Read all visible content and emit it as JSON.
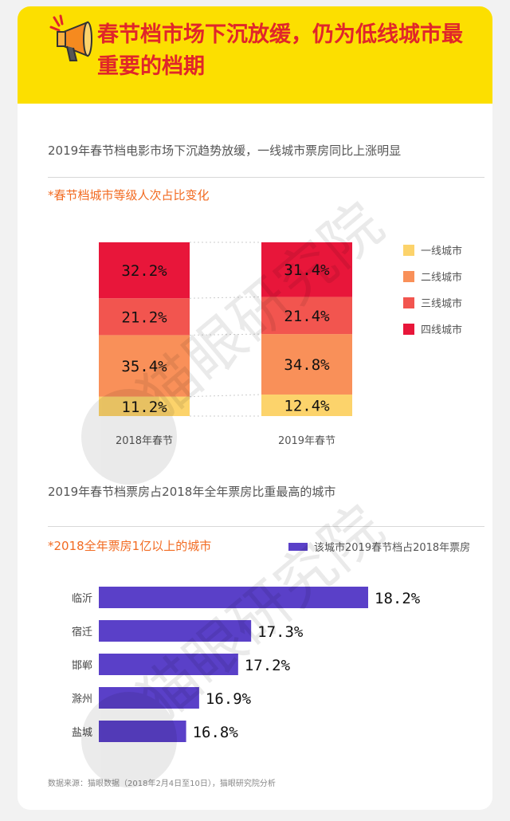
{
  "header": {
    "title": "春节档市场下沉放缓，仍为低线城市最重要的档期"
  },
  "section1": {
    "subtitle": "2019年春节档电影市场下沉趋势放缓，一线城市票房同比上涨明显",
    "label": "*春节档城市等级人次占比变化"
  },
  "section2": {
    "subtitle": "2019年春节档票房占2018年全年票房比重最高的城市",
    "label": "*2018全年票房1亿以上的城市"
  },
  "source": "数据来源：猫眼数据（2018年2月4日至10日），猫眼研究院分析",
  "watermark": {
    "text": "猫眼研究院"
  },
  "colors": {
    "tier1": "#fcd36b",
    "tier2": "#f99059",
    "tier3": "#f2554f",
    "tier4": "#e8163a",
    "hbar": "#5a40c8",
    "accent": "#f26b22",
    "title": "#e0262a",
    "header_bg": "#fcdf00"
  },
  "chart_data": [
    {
      "type": "bar",
      "stacked": true,
      "normalized": true,
      "categories": [
        "2018年春节",
        "2019年春节"
      ],
      "series": [
        {
          "name": "一线城市",
          "values": [
            11.2,
            12.4
          ],
          "labels": [
            "11.2%",
            "12.4%"
          ]
        },
        {
          "name": "二线城市",
          "values": [
            35.4,
            34.8
          ],
          "labels": [
            "35.4%",
            "34.8%"
          ]
        },
        {
          "name": "三线城市",
          "values": [
            21.2,
            21.4
          ],
          "labels": [
            "21.2%",
            "21.4%"
          ]
        },
        {
          "name": "四线城市",
          "values": [
            32.2,
            31.4
          ],
          "labels": [
            "32.2%",
            "31.4%"
          ]
        }
      ],
      "legend": "right",
      "grid": false
    },
    {
      "type": "bar",
      "orientation": "horizontal",
      "categories": [
        "临沂",
        "宿迁",
        "邯郸",
        "滁州",
        "盐城"
      ],
      "series": [
        {
          "name": "该城市2019春节档占2018年票房",
          "values": [
            18.2,
            17.3,
            17.2,
            16.9,
            16.8
          ],
          "labels": [
            "18.2%",
            "17.3%",
            "17.2%",
            "16.9%",
            "16.8%"
          ]
        }
      ],
      "legend": "top-right",
      "grid": false
    }
  ]
}
